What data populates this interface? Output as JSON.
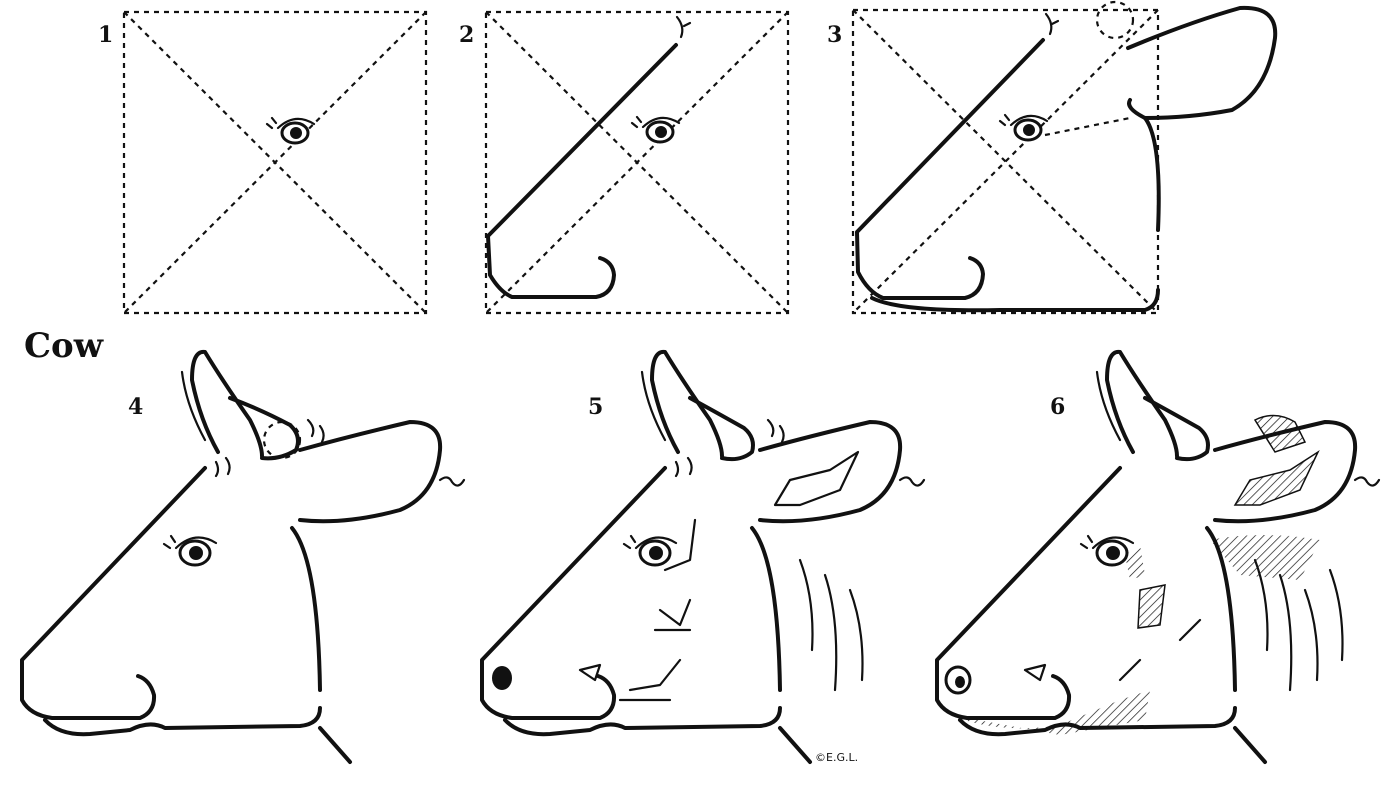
{
  "title": "Cow",
  "steps": [
    {
      "number": "1"
    },
    {
      "number": "2"
    },
    {
      "number": "3"
    },
    {
      "number": "4"
    },
    {
      "number": "5"
    },
    {
      "number": "6"
    }
  ],
  "credit": "©E.G.L.",
  "colors": {
    "ink": "#111111",
    "paper": "#ffffff"
  }
}
